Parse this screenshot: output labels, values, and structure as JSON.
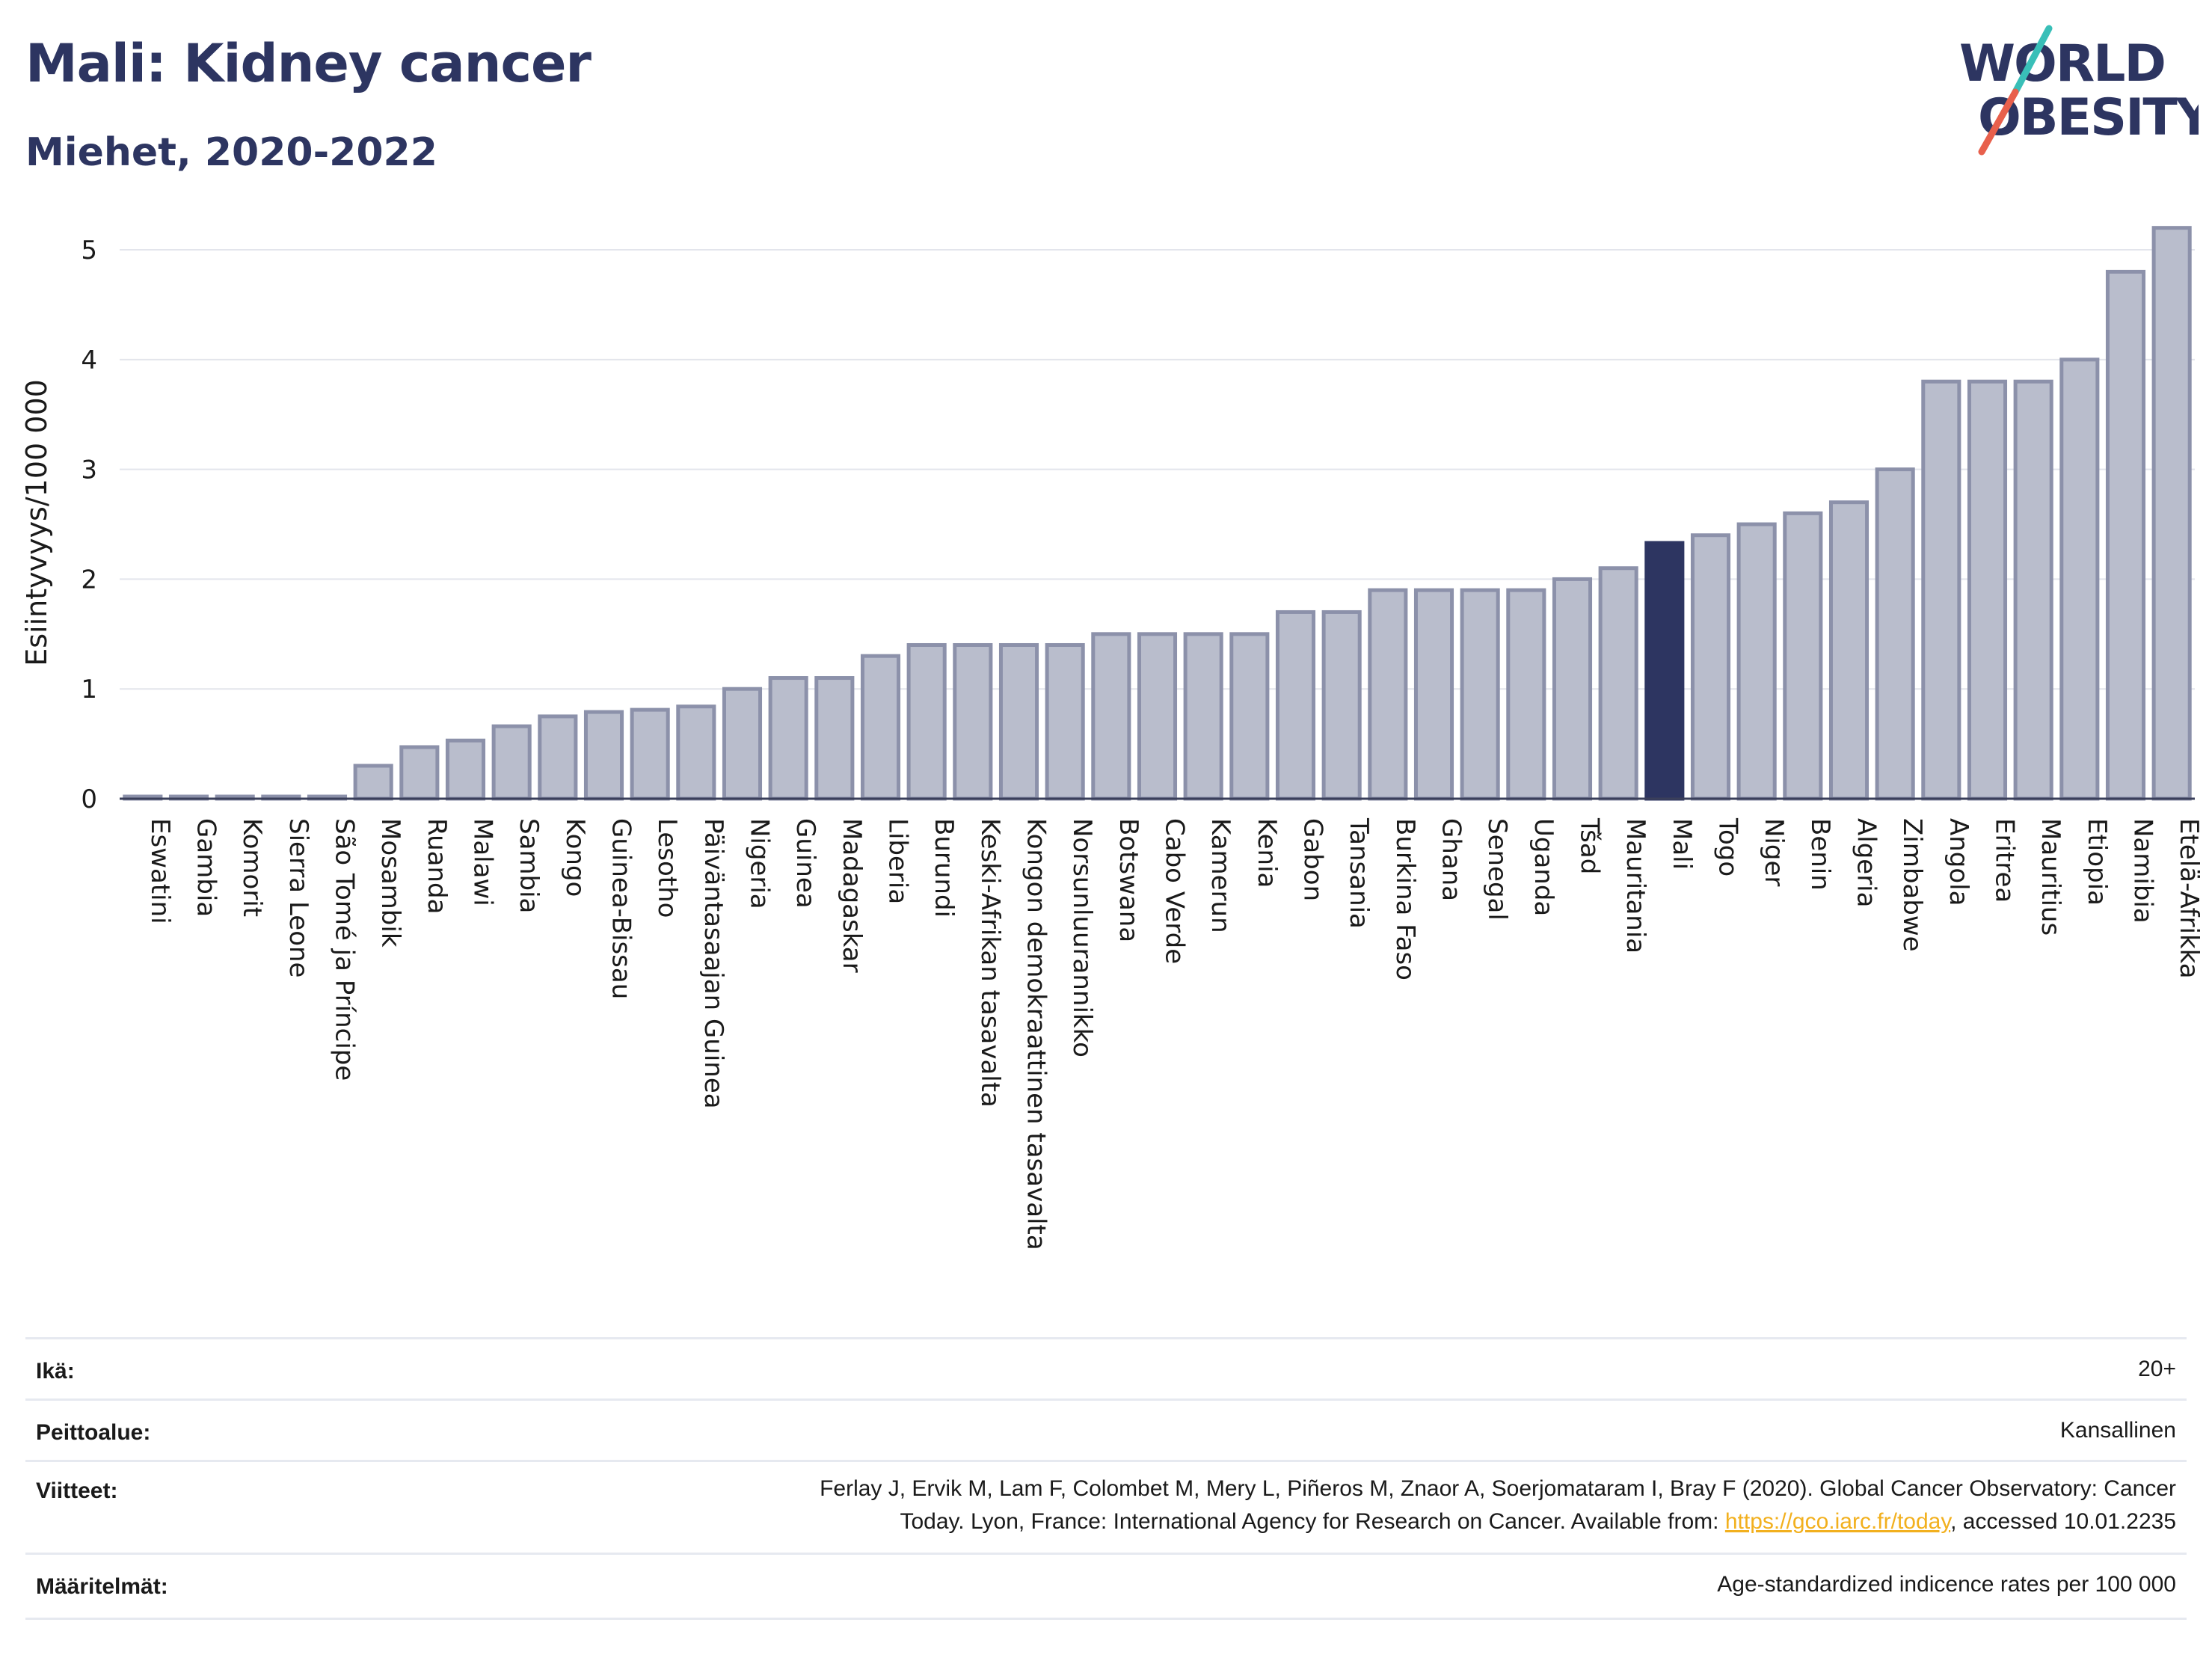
{
  "header": {
    "title": "Mali: Kidney cancer",
    "subtitle": "Miehet, 2020-2022"
  },
  "logo": {
    "line1": "WORLD",
    "line2": "OBESITY",
    "text_color": "#2d3561",
    "slash_colors": [
      "#39bfb8",
      "#e8604c"
    ]
  },
  "colors": {
    "bar": "#b9bdcc",
    "bar_border": "#8c91aa",
    "highlight": "#2d3561",
    "grid": "#e3e5ec"
  },
  "chart_data": {
    "type": "bar",
    "ylabel": "Esiintyvyys/100 000",
    "ylim": [
      0,
      5.3
    ],
    "yticks": [
      0,
      1,
      2,
      3,
      4,
      5
    ],
    "grid": true,
    "highlight": "Mali",
    "categories": [
      "Eswatini",
      "Gambia",
      "Komorit",
      "Sierra Leone",
      "São Tomé ja Príncipe",
      "Mosambik",
      "Ruanda",
      "Malawi",
      "Sambia",
      "Kongo",
      "Guinea-Bissau",
      "Lesotho",
      "Päiväntasaajan Guinea",
      "Nigeria",
      "Guinea",
      "Madagaskar",
      "Liberia",
      "Burundi",
      "Keski-Afrikan tasavalta",
      "Kongon demokraattinen tasavalta",
      "Norsunluurannikko",
      "Botswana",
      "Cabo Verde",
      "Kamerun",
      "Kenia",
      "Gabon",
      "Tansania",
      "Burkina Faso",
      "Ghana",
      "Senegal",
      "Uganda",
      "Tšad",
      "Mauritania",
      "Mali",
      "Togo",
      "Niger",
      "Benin",
      "Algeria",
      "Zimbabwe",
      "Angola",
      "Eritrea",
      "Mauritius",
      "Etiopia",
      "Namibia",
      "Etelä-Afrikka"
    ],
    "values": [
      0.02,
      0.02,
      0.02,
      0.02,
      0.02,
      0.3,
      0.47,
      0.53,
      0.66,
      0.75,
      0.79,
      0.81,
      0.84,
      1.0,
      1.1,
      1.1,
      1.3,
      1.4,
      1.4,
      1.4,
      1.4,
      1.5,
      1.5,
      1.5,
      1.5,
      1.7,
      1.7,
      1.9,
      1.9,
      1.9,
      1.9,
      2.0,
      2.1,
      2.33,
      2.4,
      2.5,
      2.6,
      2.7,
      3.0,
      3.8,
      3.8,
      3.8,
      4.0,
      4.8,
      5.2
    ]
  },
  "meta": [
    {
      "label": "Ikä:",
      "value": "20+"
    },
    {
      "label": "Peittoalue:",
      "value": "Kansallinen"
    },
    {
      "label": "Viitteet:",
      "value_line1": "Ferlay J, Ervik M, Lam F, Colombet M, Mery L, Piñeros M, Znaor A, Soerjomataram I, Bray F (2020). Global Cancer Observatory: Cancer",
      "value_line2_pre": "Today. Lyon, France: International Agency for Research on Cancer. Available from: ",
      "link": "https://gco.iarc.fr/today",
      "value_line2_post": ", accessed 10.01.2235"
    },
    {
      "label": "Määritelmät:",
      "value": "Age-standardized indicence rates per 100 000"
    }
  ]
}
